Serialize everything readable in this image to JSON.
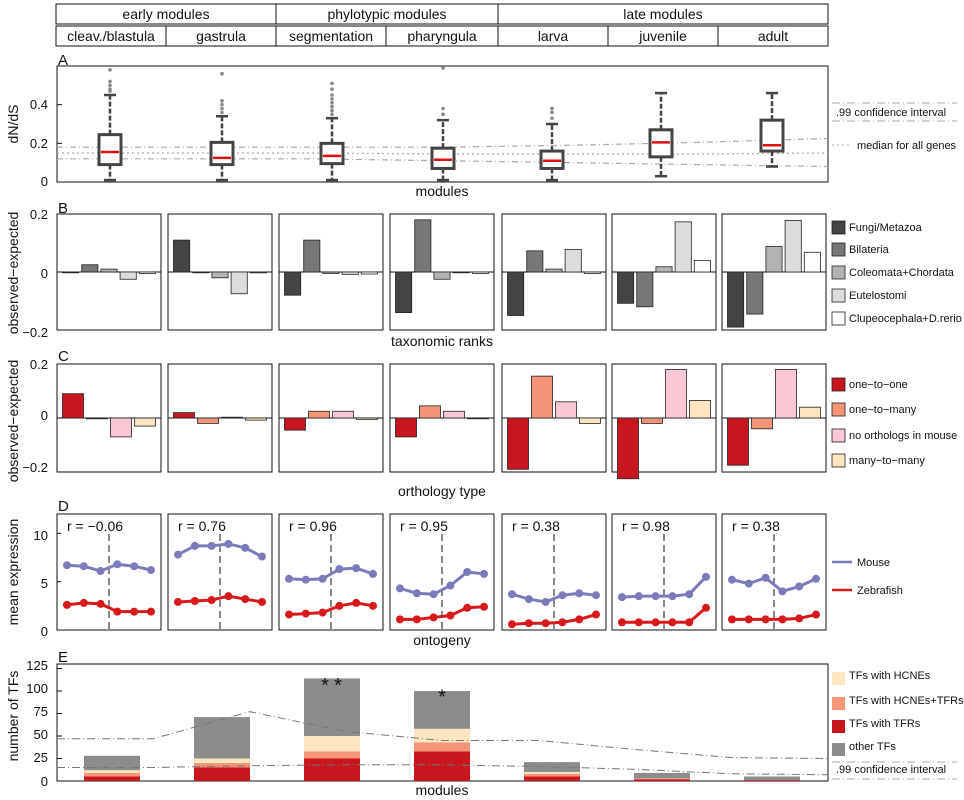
{
  "header": {
    "groups": [
      "early modules",
      "phylotypic modules",
      "late modules"
    ],
    "stages": [
      "cleav./blastula",
      "gastrula",
      "segmentation",
      "pharyngula",
      "larva",
      "juvenile",
      "adult"
    ]
  },
  "colors": {
    "box": "#444444",
    "median": "#dd1111",
    "outlier": "#888888",
    "ref": "#aaaaaa",
    "tax": [
      "#444444",
      "#777777",
      "#b3b3b3",
      "#dcdcdc",
      "#ffffff"
    ],
    "orth": [
      "#c8161e",
      "#f4957a",
      "#fbc7d4",
      "#fde5bf"
    ],
    "mouse": "#7b7bba",
    "zebrafish": "#d7191c",
    "stack": [
      "#c8161e",
      "#f4957a",
      "#fde5bf",
      "#8c8c8c"
    ]
  },
  "panels": {
    "A": {
      "label": "A",
      "ylabel": "dN/dS",
      "xlabel": "modules",
      "yticks": [
        "0",
        "0.2",
        "0.4"
      ],
      "legend": [
        ".99 confidence interval",
        "median for all genes"
      ]
    },
    "B": {
      "label": "B",
      "ylabel": "observed−expected",
      "xlabel": "taxonomic ranks",
      "yticks": [
        "0.2",
        "0",
        "−0.2"
      ],
      "legend": [
        "Fungi/Metazoa",
        "Bilateria",
        "Coleomata+Chordata",
        "Eutelostomi",
        "Clupeocephala+D.rerio"
      ]
    },
    "C": {
      "label": "C",
      "ylabel": "observed−expected",
      "xlabel": "orthology type",
      "yticks": [
        "0.2",
        "0",
        "−0.2"
      ],
      "legend": [
        "one−to−one",
        "one−to−many",
        "no orthologs in mouse",
        "many−to−many"
      ]
    },
    "D": {
      "label": "D",
      "ylabel": "mean expression",
      "xlabel": "ontogeny",
      "yticks": [
        "10",
        "5",
        "0"
      ],
      "legend": [
        "Mouse",
        "Zebrafish"
      ],
      "r_labels": [
        "r = −0.06",
        "r = 0.76",
        "r = 0.96",
        "r = 0.95",
        "r = 0.38",
        "r = 0.98",
        "r = 0.38"
      ]
    },
    "E": {
      "label": "E",
      "ylabel": "number of TFs",
      "xlabel": "modules",
      "yticks": [
        "0",
        "25",
        "50",
        "75",
        "100",
        "125"
      ],
      "legend": [
        "TFs with HCNEs",
        "TFs with HCNEs+TFRs",
        "TFs with TFRs",
        "other TFs",
        ".99 confidence interval"
      ]
    }
  },
  "chart_data": [
    {
      "panel": "A",
      "type": "box",
      "categories": [
        "cleav./blastula",
        "gastrula",
        "segmentation",
        "pharyngula",
        "larva",
        "juvenile",
        "adult"
      ],
      "ylim": [
        0,
        0.6
      ],
      "boxes": [
        {
          "whisker_low": 0.01,
          "q1": 0.09,
          "median": 0.155,
          "q3": 0.245,
          "whisker_high": 0.45,
          "outliers": [
            0.47,
            0.48,
            0.5,
            0.52,
            0.58
          ]
        },
        {
          "whisker_low": 0.01,
          "q1": 0.09,
          "median": 0.125,
          "q3": 0.205,
          "whisker_high": 0.34,
          "outliers": [
            0.36,
            0.38,
            0.4,
            0.42,
            0.56
          ]
        },
        {
          "whisker_low": 0.01,
          "q1": 0.095,
          "median": 0.135,
          "q3": 0.2,
          "whisker_high": 0.33,
          "outliers": [
            0.35,
            0.37,
            0.39,
            0.41,
            0.43,
            0.45,
            0.48,
            0.51
          ]
        },
        {
          "whisker_low": 0.01,
          "q1": 0.07,
          "median": 0.115,
          "q3": 0.175,
          "whisker_high": 0.32,
          "outliers": [
            0.35,
            0.38,
            0.59
          ]
        },
        {
          "whisker_low": 0.01,
          "q1": 0.07,
          "median": 0.11,
          "q3": 0.16,
          "whisker_high": 0.3,
          "outliers": [
            0.33,
            0.36,
            0.38
          ]
        },
        {
          "whisker_low": 0.03,
          "q1": 0.13,
          "median": 0.205,
          "q3": 0.27,
          "whisker_high": 0.46,
          "outliers": []
        },
        {
          "whisker_low": 0.08,
          "q1": 0.16,
          "median": 0.19,
          "q3": 0.32,
          "whisker_high": 0.46,
          "outliers": []
        }
      ],
      "reference_lines": {
        "ci_upper": [
          0.18,
          0.18,
          0.18,
          0.18,
          0.19,
          0.205,
          0.225
        ],
        "ci_lower": [
          0.12,
          0.12,
          0.12,
          0.11,
          0.1,
          0.09,
          0.08
        ],
        "median": [
          0.15,
          0.15,
          0.15,
          0.145,
          0.145,
          0.145,
          0.15
        ]
      }
    },
    {
      "panel": "B",
      "type": "bar",
      "ylim": [
        -0.2,
        0.2
      ],
      "series_names": [
        "Fungi/Metazoa",
        "Bilateria",
        "Coleomata+Chordata",
        "Eutelostomi",
        "Clupeocephala+D.rerio"
      ],
      "values": [
        [
          0,
          0.025,
          0.01,
          -0.025,
          -0.005
        ],
        [
          0.11,
          0,
          -0.02,
          -0.075,
          -0.003
        ],
        [
          -0.08,
          0.11,
          -0.005,
          -0.008,
          -0.007
        ],
        [
          -0.14,
          0.18,
          -0.025,
          0,
          -0.005
        ],
        [
          -0.15,
          0.073,
          0.01,
          0.078,
          -0.005
        ],
        [
          -0.108,
          -0.12,
          0.018,
          0.173,
          0.04
        ],
        [
          -0.19,
          -0.145,
          0.088,
          0.178,
          0.068
        ]
      ]
    },
    {
      "panel": "C",
      "type": "bar",
      "ylim": [
        -0.2,
        0.2
      ],
      "series_names": [
        "one−to−one",
        "one−to−many",
        "no orthologs in mouse",
        "many−to−many"
      ],
      "values": [
        [
          0.09,
          0,
          -0.07,
          -0.03
        ],
        [
          0.02,
          -0.02,
          0.003,
          -0.008
        ],
        [
          -0.045,
          0.025,
          0.025,
          -0.005
        ],
        [
          -0.07,
          0.045,
          0.025,
          0
        ],
        [
          -0.19,
          0.155,
          0.06,
          -0.02
        ],
        [
          -0.225,
          -0.02,
          0.18,
          0.065
        ],
        [
          -0.175,
          -0.04,
          0.18,
          0.04
        ]
      ]
    },
    {
      "panel": "D",
      "type": "line",
      "ylim": [
        0,
        12
      ],
      "series_names": [
        "Mouse",
        "Zebrafish"
      ],
      "mouse": [
        [
          6.7,
          6.6,
          6.1,
          6.8,
          6.6,
          6.2
        ],
        [
          7.8,
          8.7,
          8.7,
          8.9,
          8.5,
          7.6
        ],
        [
          5.3,
          5.2,
          5.3,
          6.3,
          6.4,
          5.8
        ],
        [
          4.3,
          3.8,
          3.7,
          4.6,
          6.0,
          5.8
        ],
        [
          3.7,
          3.2,
          2.9,
          3.6,
          3.8,
          3.6
        ],
        [
          3.4,
          3.5,
          3.5,
          3.5,
          3.7,
          5.5
        ],
        [
          5.2,
          4.8,
          5.4,
          4.0,
          4.5,
          5.3
        ]
      ],
      "zebrafish": [
        [
          2.6,
          2.8,
          2.7,
          1.9,
          1.9,
          1.9
        ],
        [
          2.9,
          3.0,
          3.1,
          3.5,
          3.2,
          2.9
        ],
        [
          1.6,
          1.7,
          1.8,
          2.5,
          2.8,
          2.5
        ],
        [
          1.1,
          1.1,
          1.3,
          1.5,
          2.3,
          2.4
        ],
        [
          0.6,
          0.7,
          0.7,
          0.8,
          1.1,
          1.6
        ],
        [
          0.8,
          0.8,
          0.8,
          0.8,
          0.8,
          2.3
        ],
        [
          1.1,
          1.1,
          1.1,
          1.1,
          1.2,
          1.6
        ]
      ]
    },
    {
      "panel": "E",
      "type": "stacked_bar",
      "categories": [
        "cleav./blastula",
        "gastrula",
        "segmentation",
        "pharyngula",
        "larva",
        "juvenile",
        "adult"
      ],
      "ylim": [
        0,
        130
      ],
      "series_names": [
        "TFs with TFRs",
        "TFs with HCNEs+TFRs",
        "TFs with HCNEs",
        "other TFs"
      ],
      "stacks": [
        [
          5,
          4,
          3,
          16
        ],
        [
          15,
          5,
          5,
          46
        ],
        [
          25,
          8,
          17,
          64
        ],
        [
          33,
          10,
          15,
          42
        ],
        [
          5,
          3,
          2,
          11
        ],
        [
          2,
          1,
          0,
          6
        ],
        [
          1,
          0,
          0,
          4
        ]
      ],
      "ci_upper": [
        47,
        47,
        77,
        55,
        45,
        45,
        35,
        26,
        25
      ],
      "ci_lower": [
        15,
        15,
        17,
        18,
        18,
        16,
        13,
        8,
        7
      ],
      "stars": [
        {
          "bar": 2,
          "y": 108,
          "color": "#ffffff"
        },
        {
          "bar": 2,
          "y": 108,
          "color": "#c8161e"
        },
        {
          "bar": 3,
          "y": 95,
          "color": "#c8161e"
        }
      ]
    }
  ]
}
